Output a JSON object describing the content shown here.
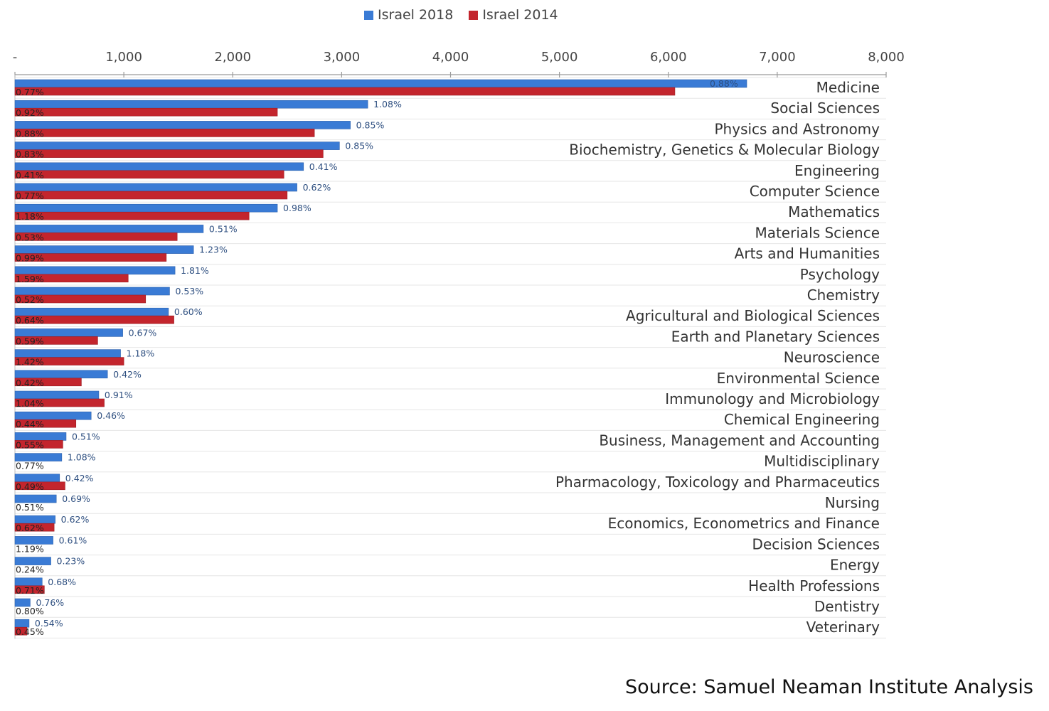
{
  "legend": [
    {
      "label": "Israel 2018",
      "color": "#3a7bd5"
    },
    {
      "label": "Israel 2014",
      "color": "#c3252d"
    }
  ],
  "source": "Source: Samuel Neaman Institute Analysis",
  "chart_data": {
    "type": "bar",
    "orientation": "horizontal",
    "xlim": [
      0,
      8000
    ],
    "xticks": [
      "-",
      "1,000",
      "2,000",
      "3,000",
      "4,000",
      "5,000",
      "6,000",
      "7,000",
      "8,000"
    ],
    "categories": [
      "Medicine",
      "Social Sciences",
      "Physics and Astronomy",
      "Biochemistry, Genetics & Molecular Biology",
      "Engineering",
      "Computer Science",
      "Mathematics",
      "Materials Science",
      "Arts and Humanities",
      "Psychology",
      "Chemistry",
      "Agricultural and Biological Sciences",
      "Earth and Planetary Sciences",
      "Neuroscience",
      "Environmental Science",
      "Immunology and Microbiology",
      "Chemical Engineering",
      "Business, Management and Accounting",
      "Multidisciplinary",
      "Pharmacology, Toxicology and Pharmaceutics",
      "Nursing",
      "Economics, Econometrics and Finance",
      "Decision Sciences",
      "Energy",
      "Health Professions",
      "Dentistry",
      "Veterinary"
    ],
    "series": [
      {
        "name": "Israel 2018",
        "color": "#3a7bd5",
        "values": [
          6720,
          3240,
          3080,
          2980,
          2650,
          2590,
          2410,
          1730,
          1640,
          1470,
          1420,
          1410,
          990,
          970,
          850,
          770,
          700,
          470,
          430,
          410,
          380,
          370,
          350,
          330,
          250,
          140,
          130
        ],
        "labels": [
          "0.88%",
          "1.08%",
          "0.85%",
          "0.85%",
          "0.41%",
          "0.62%",
          "0.98%",
          "0.51%",
          "1.23%",
          "1.81%",
          "0.53%",
          "0.60%",
          "0.67%",
          "1.18%",
          "0.42%",
          "0.91%",
          "0.46%",
          "0.51%",
          "1.08%",
          "0.42%",
          "0.69%",
          "0.62%",
          "0.61%",
          "0.23%",
          "0.68%",
          "0.76%",
          "0.54%"
        ]
      },
      {
        "name": "Israel 2014",
        "color": "#c3252d",
        "values": [
          6060,
          2410,
          2750,
          2830,
          2470,
          2500,
          2150,
          1490,
          1390,
          1040,
          1200,
          1460,
          760,
          1000,
          610,
          820,
          560,
          440,
          0,
          460,
          0,
          360,
          0,
          0,
          270,
          0,
          110
        ],
        "labels": [
          "0.77%",
          "0.92%",
          "0.88%",
          "0.83%",
          "0.41%",
          "0.77%",
          "1.18%",
          "0.53%",
          "0.99%",
          "1.59%",
          "0.52%",
          "0.64%",
          "0.59%",
          "1.42%",
          "0.42%",
          "1.04%",
          "0.44%",
          "0.55%",
          "0.77%",
          "0.49%",
          "0.51%",
          "0.62%",
          "1.19%",
          "0.24%",
          "0.71%",
          "0.80%",
          "0.45%"
        ]
      }
    ]
  }
}
